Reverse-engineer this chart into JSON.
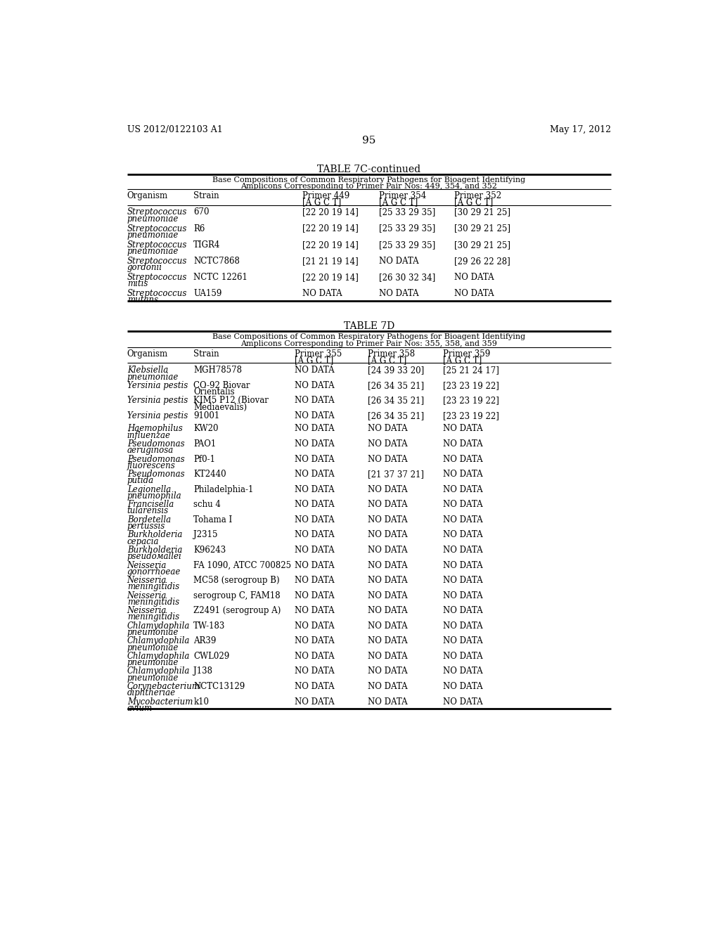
{
  "page_header_left": "US 2012/0122103 A1",
  "page_header_right": "May 17, 2012",
  "page_number": "95",
  "table1": {
    "title": "TABLE 7C-continued",
    "subtitle_line1": "Base Compositions of Common Respiratory Pathogens for Bioagent Identifying",
    "subtitle_line2": "Amplicons Corresponding to Primer Pair Nos: 449, 354, and 352",
    "rows": [
      [
        "Streptococcus\npneumoniae",
        "670",
        "[22 20 19 14]",
        "[25 33 29 35]",
        "[30 29 21 25]"
      ],
      [
        "Streptococcus\npneumoniae",
        "R6",
        "[22 20 19 14]",
        "[25 33 29 35]",
        "[30 29 21 25]"
      ],
      [
        "Streptococcus\npneumoniae",
        "TIGR4",
        "[22 20 19 14]",
        "[25 33 29 35]",
        "[30 29 21 25]"
      ],
      [
        "Streptococcus\ngordonii",
        "NCTC7868",
        "[21 21 19 14]",
        "NO DATA",
        "[29 26 22 28]"
      ],
      [
        "Streptococcus\nmitis",
        "NCTC 12261",
        "[22 20 19 14]",
        "[26 30 32 34]",
        "NO DATA"
      ],
      [
        "Streptococcus\nmutans",
        "UA159",
        "NO DATA",
        "NO DATA",
        "NO DATA"
      ]
    ]
  },
  "table2": {
    "title": "TABLE 7D",
    "subtitle_line1": "Base Compositions of Common Respiratory Pathogens for Bioagent Identifying",
    "subtitle_line2": "Amplicons Corresponding to Primer Pair Nos: 355, 358, and 359",
    "rows": [
      [
        "Klebsiella\npneumoniae",
        "MGH78578",
        "NO DATA",
        "[24 39 33 20]",
        "[25 21 24 17]"
      ],
      [
        "Yersinia pestis",
        "CO-92 Biovar\nOrientalis",
        "NO DATA",
        "[26 34 35 21]",
        "[23 23 19 22]"
      ],
      [
        "Yersinia pestis",
        "KIM5 P12 (Biovar\nMediaevalis)",
        "NO DATA",
        "[26 34 35 21]",
        "[23 23 19 22]"
      ],
      [
        "Yersinia pestis",
        "91001",
        "NO DATA",
        "[26 34 35 21]",
        "[23 23 19 22]"
      ],
      [
        "Haemophilus\ninfluenzae",
        "KW20",
        "NO DATA",
        "NO DATA",
        "NO DATA"
      ],
      [
        "Pseudomonas\naeruginosa",
        "PAO1",
        "NO DATA",
        "NO DATA",
        "NO DATA"
      ],
      [
        "Pseudomonas\nfluorescens",
        "Pf0-1",
        "NO DATA",
        "NO DATA",
        "NO DATA"
      ],
      [
        "Pseudomonas\nputida",
        "KT2440",
        "NO DATA",
        "[21 37 37 21]",
        "NO DATA"
      ],
      [
        "Legionella\npneumophila",
        "Philadelphia-1",
        "NO DATA",
        "NO DATA",
        "NO DATA"
      ],
      [
        "Francisella\ntularensis",
        "schu 4",
        "NO DATA",
        "NO DATA",
        "NO DATA"
      ],
      [
        "Bordetella\npertussis",
        "Tohama I",
        "NO DATA",
        "NO DATA",
        "NO DATA"
      ],
      [
        "Burkholderia\ncepacia",
        "J2315",
        "NO DATA",
        "NO DATA",
        "NO DATA"
      ],
      [
        "Burkholderia\npseudомallei",
        "K96243",
        "NO DATA",
        "NO DATA",
        "NO DATA"
      ],
      [
        "Neisseria\ngonorrhoeae",
        "FA 1090, ATCC 700825",
        "NO DATA",
        "NO DATA",
        "NO DATA"
      ],
      [
        "Neisseria\nmeningitidis",
        "MC58 (serogroup B)",
        "NO DATA",
        "NO DATA",
        "NO DATA"
      ],
      [
        "Neisseria\nmeningitidis",
        "serogroup C, FAM18",
        "NO DATA",
        "NO DATA",
        "NO DATA"
      ],
      [
        "Neisseria\nmeningitidis",
        "Z2491 (serogroup A)",
        "NO DATA",
        "NO DATA",
        "NO DATA"
      ],
      [
        "Chlamydophila\npneumoniae",
        "TW-183",
        "NO DATA",
        "NO DATA",
        "NO DATA"
      ],
      [
        "Chlamydophila\npneumoniae",
        "AR39",
        "NO DATA",
        "NO DATA",
        "NO DATA"
      ],
      [
        "Chlamydophila\npneumoniae",
        "CWL029",
        "NO DATA",
        "NO DATA",
        "NO DATA"
      ],
      [
        "Chlamydophila\npneumoniae",
        "J138",
        "NO DATA",
        "NO DATA",
        "NO DATA"
      ],
      [
        "Corynebacterium\ndiphtheriae",
        "NCTC13129",
        "NO DATA",
        "NO DATA",
        "NO DATA"
      ],
      [
        "Mycobacterium\navium",
        "k10",
        "NO DATA",
        "NO DATA",
        "NO DATA"
      ]
    ]
  }
}
